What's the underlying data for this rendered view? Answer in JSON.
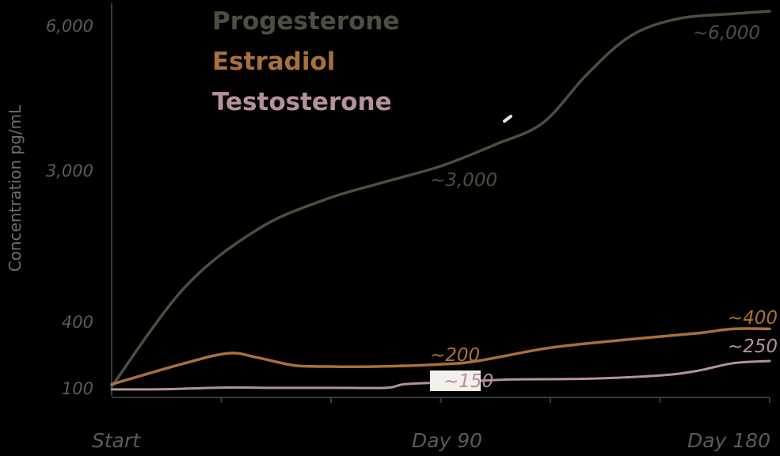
{
  "chart_data": {
    "type": "line",
    "title": "",
    "ylabel": "Concentration pg/mL",
    "xlabel": "",
    "x_ticks": [
      {
        "label": "Start",
        "day": 0
      },
      {
        "label": "Day 90",
        "day": 90
      },
      {
        "label": "Day 180",
        "day": 180
      }
    ],
    "y_ticks": [
      {
        "label": "100",
        "value": 100
      },
      {
        "label": "400",
        "value": 400
      },
      {
        "label": "3,000",
        "value": 3000
      },
      {
        "label": "6,000",
        "value": 6000
      }
    ],
    "xlim": [
      0,
      180
    ],
    "legend_position": "top-left",
    "grid": false,
    "series": [
      {
        "name": "Progesterone",
        "color": "#4b4f40",
        "points": [
          [
            0,
            110
          ],
          [
            20,
            1000
          ],
          [
            40,
            2000
          ],
          [
            58,
            2500
          ],
          [
            74,
            2800
          ],
          [
            90,
            3100
          ],
          [
            105,
            3550
          ],
          [
            118,
            4000
          ],
          [
            130,
            5000
          ],
          [
            142,
            5800
          ],
          [
            155,
            6150
          ],
          [
            170,
            6250
          ],
          [
            180,
            6300
          ]
        ],
        "annotations": [
          {
            "text": "~3,000",
            "day": 90
          },
          {
            "text": "~6,000",
            "day": 180
          }
        ]
      },
      {
        "name": "Estradiol",
        "color": "#a8703a",
        "points": [
          [
            0,
            120
          ],
          [
            20,
            215
          ],
          [
            32,
            260
          ],
          [
            40,
            240
          ],
          [
            50,
            205
          ],
          [
            60,
            200
          ],
          [
            72,
            200
          ],
          [
            90,
            210
          ],
          [
            100,
            225
          ],
          [
            120,
            285
          ],
          [
            140,
            320
          ],
          [
            160,
            350
          ],
          [
            170,
            370
          ],
          [
            180,
            370
          ]
        ],
        "annotations": [
          {
            "text": "~200",
            "day": 90
          },
          {
            "text": "~400",
            "day": 180
          }
        ]
      },
      {
        "name": "Testosterone",
        "color": "#b49299",
        "points": [
          [
            0,
            85
          ],
          [
            15,
            90
          ],
          [
            30,
            105
          ],
          [
            45,
            104
          ],
          [
            60,
            104
          ],
          [
            75,
            104
          ],
          [
            80,
            120
          ],
          [
            90,
            128
          ],
          [
            100,
            135
          ],
          [
            110,
            142
          ],
          [
            130,
            145
          ],
          [
            150,
            160
          ],
          [
            160,
            180
          ],
          [
            170,
            215
          ],
          [
            180,
            225
          ]
        ],
        "annotations": [
          {
            "text": "~150",
            "day": 90
          },
          {
            "text": "~250",
            "day": 180
          }
        ]
      }
    ]
  }
}
